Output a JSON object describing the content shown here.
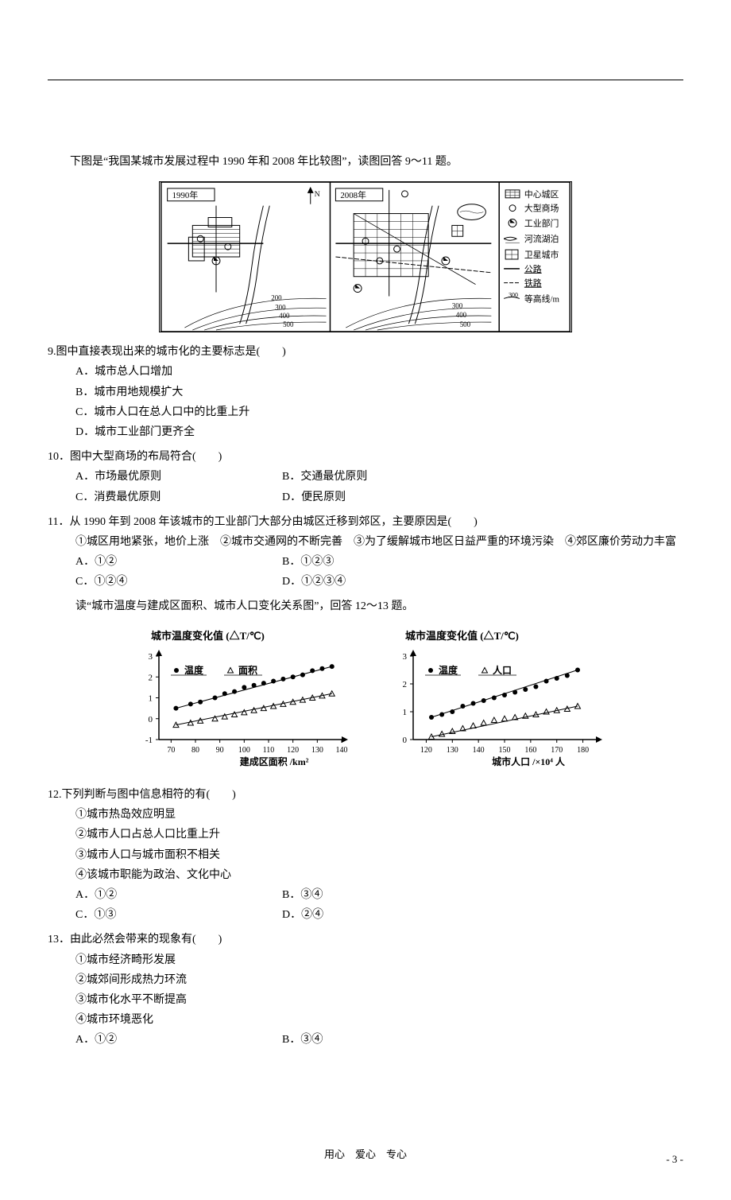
{
  "intro1": "下图是“我国某城市发展过程中 1990 年和 2008 年比较图”，读图回答 9～11 题。",
  "map": {
    "year1": "1990年",
    "year2": "2008年",
    "legend": {
      "center": "中心城区",
      "mall": "大型商场",
      "industry": "工业部门",
      "lake": "河流湖泊",
      "satellite": "卫星城市",
      "road": "公路",
      "rail": "铁路",
      "contour": "等高线/m"
    },
    "contours": [
      "200",
      "300",
      "400",
      "500",
      "300"
    ]
  },
  "q9": {
    "text": "9.图中直接表现出来的城市化的主要标志是(　　)",
    "a": "A．城市总人口增加",
    "b": "B．城市用地规模扩大",
    "c": "C．城市人口在总人口中的比重上升",
    "d": "D．城市工业部门更齐全"
  },
  "q10": {
    "text": "10．图中大型商场的布局符合(　　)",
    "a": "A．市场最优原则",
    "b": "B．交通最优原则",
    "c": "C．消费最优原则",
    "d": "D．便民原则"
  },
  "q11": {
    "text": "11．从 1990 年到 2008 年该城市的工业部门大部分由城区迁移到郊区，主要原因是(　　)",
    "line2": "①城区用地紧张，地价上涨　②城市交通网的不断完善　③为了缓解城市地区日益严重的环境污染　④郊区廉价劳动力丰富",
    "a": "A．①②",
    "b": "B．①②③",
    "c": "C．①②④",
    "d": "D．①②③④"
  },
  "intro2": "读“城市温度与建成区面积、城市人口变化关系图”，回答 12～13 题。",
  "chart1": {
    "title": "城市温度变化值 (△T/℃)",
    "series1": "温度",
    "series2": "面积",
    "xlabel": "建成区面积 /km²",
    "xticks": [
      "70",
      "80",
      "90",
      "100",
      "110",
      "120",
      "130",
      "140"
    ],
    "yticks": [
      "-1",
      "0",
      "1",
      "2",
      "3"
    ],
    "temp_points": [
      [
        72,
        0.5
      ],
      [
        78,
        0.7
      ],
      [
        82,
        0.8
      ],
      [
        88,
        1.0
      ],
      [
        92,
        1.2
      ],
      [
        96,
        1.3
      ],
      [
        100,
        1.5
      ],
      [
        104,
        1.6
      ],
      [
        108,
        1.7
      ],
      [
        112,
        1.8
      ],
      [
        116,
        1.9
      ],
      [
        120,
        2.0
      ],
      [
        124,
        2.1
      ],
      [
        128,
        2.3
      ],
      [
        132,
        2.4
      ],
      [
        136,
        2.5
      ]
    ],
    "area_points": [
      [
        72,
        -0.3
      ],
      [
        78,
        -0.2
      ],
      [
        82,
        -0.1
      ],
      [
        88,
        0.0
      ],
      [
        92,
        0.1
      ],
      [
        96,
        0.2
      ],
      [
        100,
        0.3
      ],
      [
        104,
        0.4
      ],
      [
        108,
        0.5
      ],
      [
        112,
        0.6
      ],
      [
        116,
        0.7
      ],
      [
        120,
        0.8
      ],
      [
        124,
        0.9
      ],
      [
        128,
        1.0
      ],
      [
        132,
        1.1
      ],
      [
        136,
        1.2
      ]
    ],
    "marker_temp": "circle",
    "marker_area": "triangle",
    "color": "#000000"
  },
  "chart2": {
    "title": "城市温度变化值 (△T/℃)",
    "series1": "温度",
    "series2": "人口",
    "xlabel": "城市人口 /×10⁴ 人",
    "xticks": [
      "120",
      "130",
      "140",
      "150",
      "160",
      "170",
      "180"
    ],
    "yticks": [
      "0",
      "1",
      "2",
      "3"
    ],
    "temp_points": [
      [
        122,
        0.8
      ],
      [
        126,
        0.9
      ],
      [
        130,
        1.0
      ],
      [
        134,
        1.2
      ],
      [
        138,
        1.3
      ],
      [
        142,
        1.4
      ],
      [
        146,
        1.5
      ],
      [
        150,
        1.6
      ],
      [
        154,
        1.7
      ],
      [
        158,
        1.8
      ],
      [
        162,
        1.9
      ],
      [
        166,
        2.1
      ],
      [
        170,
        2.2
      ],
      [
        174,
        2.3
      ],
      [
        178,
        2.5
      ]
    ],
    "pop_points": [
      [
        122,
        0.1
      ],
      [
        126,
        0.2
      ],
      [
        130,
        0.3
      ],
      [
        134,
        0.4
      ],
      [
        138,
        0.5
      ],
      [
        142,
        0.6
      ],
      [
        146,
        0.7
      ],
      [
        150,
        0.75
      ],
      [
        154,
        0.8
      ],
      [
        158,
        0.85
      ],
      [
        162,
        0.9
      ],
      [
        166,
        1.0
      ],
      [
        170,
        1.05
      ],
      [
        174,
        1.1
      ],
      [
        178,
        1.2
      ]
    ]
  },
  "q12": {
    "text": "12.下列判断与图中信息相符的有(　　)",
    "s1": "①城市热岛效应明显",
    "s2": "②城市人口占总人口比重上升",
    "s3": "③城市人口与城市面积不相关",
    "s4": "④该城市职能为政治、文化中心",
    "a": "A．①②",
    "b": "B．③④",
    "c": "C．①③",
    "d": "D．②④"
  },
  "q13": {
    "text": "13．由此必然会带来的现象有(　　)",
    "s1": "①城市经济畸形发展",
    "s2": "②城郊间形成热力环流",
    "s3": "③城市化水平不断提高",
    "s4": "④城市环境恶化",
    "a": "A．①②",
    "b": "B．③④"
  },
  "footer": "用心　爱心　专心",
  "page": "- 3 -"
}
